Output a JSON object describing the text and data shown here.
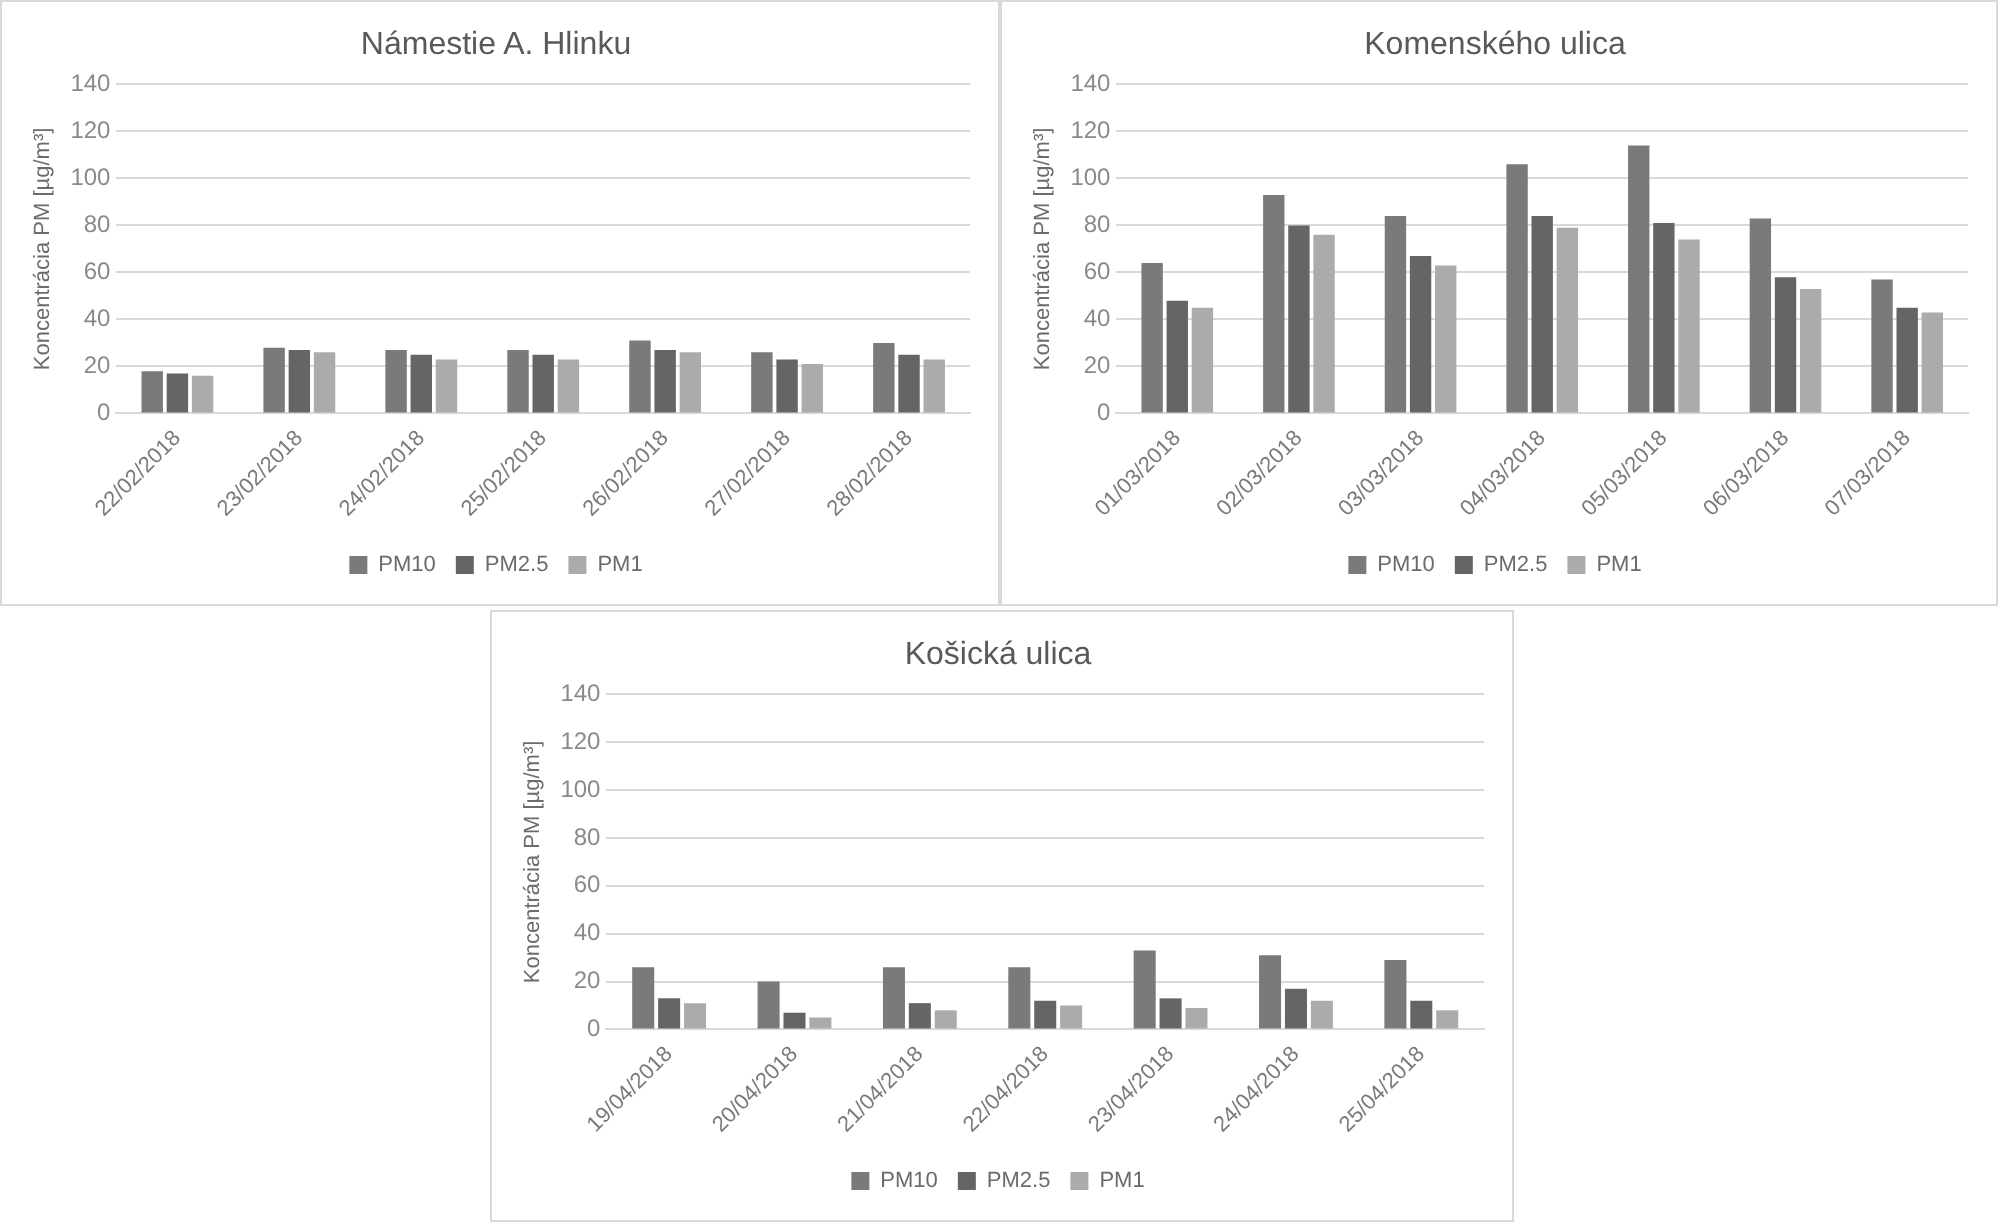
{
  "chart_data": [
    {
      "type": "bar",
      "title": "Námestie A. Hlinku",
      "ylabel": "Koncentrácia PM [µg/m³]",
      "categories": [
        "22/02/2018",
        "23/02/2018",
        "24/02/2018",
        "25/02/2018",
        "26/02/2018",
        "27/02/2018",
        "28/02/2018"
      ],
      "series": [
        {
          "name": "PM10",
          "color": "#7a7a7a",
          "values": [
            18,
            28,
            27,
            27,
            31,
            26,
            30
          ]
        },
        {
          "name": "PM2.5",
          "color": "#656565",
          "values": [
            17,
            27,
            25,
            25,
            27,
            23,
            25
          ]
        },
        {
          "name": "PM1",
          "color": "#ababab",
          "values": [
            16,
            26,
            23,
            23,
            26,
            21,
            23
          ]
        }
      ],
      "ylim": [
        0,
        140
      ],
      "yticks": [
        0,
        20,
        40,
        60,
        80,
        100,
        120,
        140
      ],
      "grid": "y",
      "legend": "bottom"
    },
    {
      "type": "bar",
      "title": "Komenského ulica",
      "ylabel": "Koncentrácia PM [µg/m³]",
      "categories": [
        "01/03/2018",
        "02/03/2018",
        "03/03/2018",
        "04/03/2018",
        "05/03/2018",
        "06/03/2018",
        "07/03/2018"
      ],
      "series": [
        {
          "name": "PM10",
          "color": "#7a7a7a",
          "values": [
            64,
            93,
            84,
            106,
            114,
            83,
            57
          ]
        },
        {
          "name": "PM2.5",
          "color": "#656565",
          "values": [
            48,
            80,
            67,
            84,
            81,
            58,
            45
          ]
        },
        {
          "name": "PM1",
          "color": "#ababab",
          "values": [
            45,
            76,
            63,
            79,
            74,
            53,
            43
          ]
        }
      ],
      "ylim": [
        0,
        140
      ],
      "yticks": [
        0,
        20,
        40,
        60,
        80,
        100,
        120,
        140
      ],
      "grid": "y",
      "legend": "bottom"
    },
    {
      "type": "bar",
      "title": "Košická ulica",
      "ylabel": "Koncentrácia PM [µg/m³]",
      "categories": [
        "19/04/2018",
        "20/04/2018",
        "21/04/2018",
        "22/04/2018",
        "23/04/2018",
        "24/04/2018",
        "25/04/2018"
      ],
      "series": [
        {
          "name": "PM10",
          "color": "#7a7a7a",
          "values": [
            26,
            20,
            26,
            26,
            33,
            31,
            29
          ]
        },
        {
          "name": "PM2.5",
          "color": "#656565",
          "values": [
            13,
            7,
            11,
            12,
            13,
            17,
            12
          ]
        },
        {
          "name": "PM1",
          "color": "#ababab",
          "values": [
            11,
            5,
            8,
            10,
            9,
            12,
            8
          ]
        }
      ],
      "ylim": [
        0,
        140
      ],
      "yticks": [
        0,
        20,
        40,
        60,
        80,
        100,
        120,
        140
      ],
      "grid": "y",
      "legend": "bottom"
    }
  ]
}
